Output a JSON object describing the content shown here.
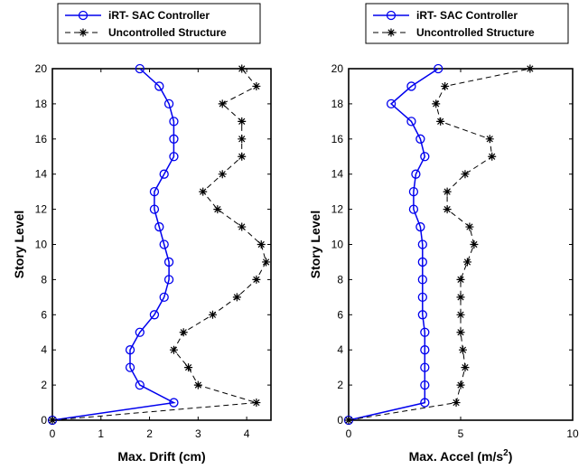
{
  "chart_data": [
    {
      "type": "line",
      "xlabel": "Max. Drift (cm)",
      "ylabel": "Story Level",
      "xlim": [
        0,
        4.5
      ],
      "ylim": [
        0,
        20
      ],
      "xticks": [
        0,
        1,
        2,
        3,
        4
      ],
      "yticks": [
        0,
        2,
        4,
        6,
        8,
        10,
        12,
        14,
        16,
        18,
        20
      ],
      "legend": "top-outside",
      "grid": false,
      "series": [
        {
          "name": "iRT- SAC Controller",
          "color": "#0000ee",
          "marker": "circle",
          "linestyle": "solid",
          "x": [
            0,
            2.5,
            1.8,
            1.6,
            1.6,
            1.8,
            2.1,
            2.3,
            2.4,
            2.4,
            2.3,
            2.2,
            2.1,
            2.1,
            2.3,
            2.5,
            2.5,
            2.5,
            2.4,
            2.2,
            1.8
          ],
          "y": [
            0,
            1,
            2,
            3,
            4,
            5,
            6,
            7,
            8,
            9,
            10,
            11,
            12,
            13,
            14,
            15,
            16,
            17,
            18,
            19,
            20
          ]
        },
        {
          "name": "Uncontrolled Structure",
          "color": "#000000",
          "marker": "star",
          "linestyle": "dashed",
          "x": [
            0,
            4.2,
            3.0,
            2.8,
            2.5,
            2.7,
            3.3,
            3.8,
            4.2,
            4.4,
            4.3,
            3.9,
            3.4,
            3.1,
            3.5,
            3.9,
            3.9,
            3.9,
            3.5,
            4.2,
            3.9
          ],
          "y": [
            0,
            1,
            2,
            3,
            4,
            5,
            6,
            7,
            8,
            9,
            10,
            11,
            12,
            13,
            14,
            15,
            16,
            17,
            18,
            19,
            20
          ]
        }
      ]
    },
    {
      "type": "line",
      "xlabel": "Max. Accel (m/s",
      "xlabel_sup": "2",
      "xlabel_tail": ")",
      "ylabel": "Story Level",
      "xlim": [
        0,
        10
      ],
      "ylim": [
        0,
        20
      ],
      "xticks": [
        0,
        5,
        10
      ],
      "yticks": [
        0,
        2,
        4,
        6,
        8,
        10,
        12,
        14,
        16,
        18,
        20
      ],
      "legend": "top-outside",
      "grid": false,
      "series": [
        {
          "name": "iRT- SAC Controller",
          "color": "#0000ee",
          "marker": "circle",
          "linestyle": "solid",
          "x": [
            0,
            3.4,
            3.4,
            3.4,
            3.4,
            3.4,
            3.3,
            3.3,
            3.3,
            3.3,
            3.3,
            3.2,
            2.9,
            2.9,
            3.0,
            3.4,
            3.2,
            2.8,
            1.9,
            2.8,
            4.0
          ],
          "y": [
            0,
            1,
            2,
            3,
            4,
            5,
            6,
            7,
            8,
            9,
            10,
            11,
            12,
            13,
            14,
            15,
            16,
            17,
            18,
            19,
            20
          ]
        },
        {
          "name": "Uncontrolled Structure",
          "color": "#000000",
          "marker": "star",
          "linestyle": "dashed",
          "x": [
            0,
            4.8,
            5.0,
            5.2,
            5.1,
            5.0,
            5.0,
            5.0,
            5.0,
            5.3,
            5.6,
            5.4,
            4.4,
            4.4,
            5.2,
            6.4,
            6.3,
            4.1,
            3.9,
            4.3,
            8.1
          ],
          "y": [
            0,
            1,
            2,
            3,
            4,
            5,
            6,
            7,
            8,
            9,
            10,
            11,
            12,
            13,
            14,
            15,
            16,
            17,
            18,
            19,
            20
          ]
        }
      ]
    }
  ]
}
